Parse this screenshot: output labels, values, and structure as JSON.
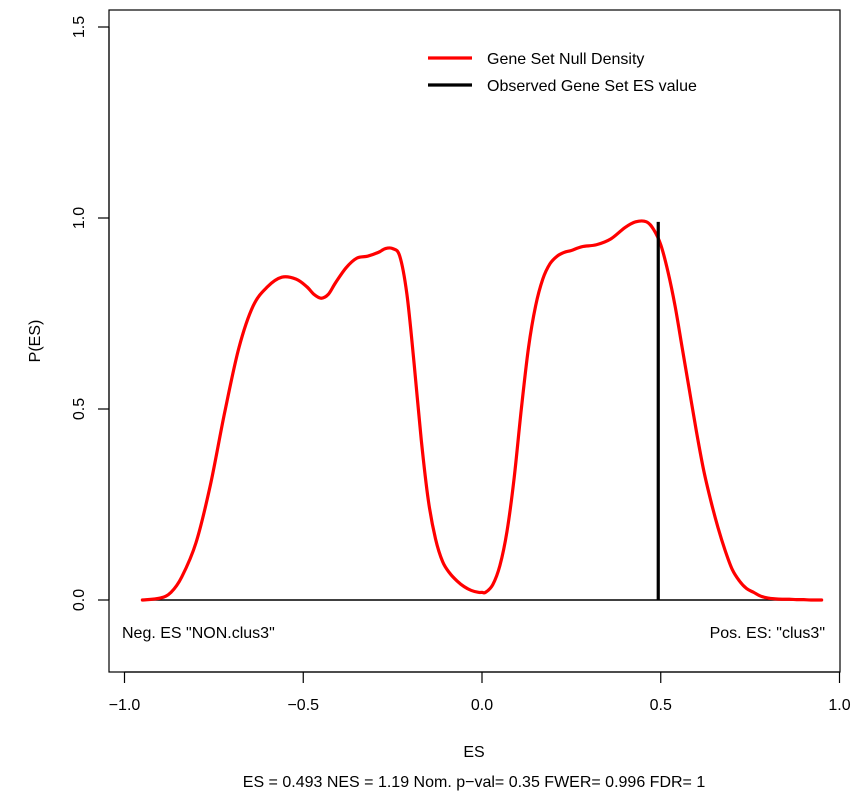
{
  "chart_data": {
    "type": "line",
    "title": "",
    "xlabel": "ES",
    "ylabel": "P(ES)",
    "stats_line": "ES = 0.493  NES = 1.19 Nom. p−val= 0.35 FWER= 0.996 FDR= 1",
    "xlim": [
      -1.0,
      1.0
    ],
    "ylim": [
      -0.18,
      1.55
    ],
    "xticks": [
      -1.0,
      -0.5,
      0.0,
      0.5,
      1.0
    ],
    "xtick_labels": [
      "−1.0",
      "−0.5",
      "0.0",
      "0.5",
      "1.0"
    ],
    "yticks": [
      0.0,
      0.5,
      1.0,
      1.5
    ],
    "ytick_labels": [
      "0.0",
      "0.5",
      "1.0",
      "1.5"
    ],
    "grid": false,
    "legend_position": "top-right",
    "neg_label": "Neg. ES \"NON.clus3\"",
    "pos_label": "Pos. ES: \"clus3\"",
    "colors": {
      "density": "#ff0000",
      "observed": "#000000",
      "axis": "#000000"
    },
    "series": [
      {
        "name": "Gene Set Null Density",
        "color": "#ff0000",
        "x": [
          -0.95,
          -0.9,
          -0.87,
          -0.84,
          -0.8,
          -0.76,
          -0.72,
          -0.68,
          -0.64,
          -0.6,
          -0.56,
          -0.52,
          -0.49,
          -0.47,
          -0.45,
          -0.43,
          -0.41,
          -0.38,
          -0.35,
          -0.32,
          -0.29,
          -0.27,
          -0.25,
          -0.23,
          -0.21,
          -0.19,
          -0.17,
          -0.15,
          -0.13,
          -0.11,
          -0.09,
          -0.07,
          -0.05,
          -0.03,
          -0.01,
          0.0,
          0.01,
          0.03,
          0.05,
          0.07,
          0.09,
          0.11,
          0.13,
          0.15,
          0.17,
          0.19,
          0.21,
          0.23,
          0.25,
          0.28,
          0.32,
          0.36,
          0.4,
          0.43,
          0.46,
          0.48,
          0.5,
          0.52,
          0.54,
          0.56,
          0.58,
          0.6,
          0.62,
          0.64,
          0.66,
          0.68,
          0.7,
          0.72,
          0.74,
          0.76,
          0.78,
          0.8,
          0.82,
          0.84,
          0.86,
          0.88,
          0.9,
          0.92,
          0.95
        ],
        "values": [
          0.0,
          0.005,
          0.02,
          0.06,
          0.15,
          0.3,
          0.49,
          0.66,
          0.77,
          0.82,
          0.845,
          0.84,
          0.82,
          0.8,
          0.79,
          0.8,
          0.83,
          0.87,
          0.895,
          0.9,
          0.91,
          0.92,
          0.92,
          0.9,
          0.8,
          0.62,
          0.42,
          0.26,
          0.16,
          0.1,
          0.07,
          0.05,
          0.035,
          0.025,
          0.02,
          0.02,
          0.02,
          0.04,
          0.09,
          0.18,
          0.32,
          0.5,
          0.66,
          0.77,
          0.84,
          0.88,
          0.9,
          0.91,
          0.915,
          0.925,
          0.93,
          0.945,
          0.975,
          0.99,
          0.99,
          0.97,
          0.93,
          0.86,
          0.77,
          0.66,
          0.55,
          0.44,
          0.34,
          0.26,
          0.19,
          0.13,
          0.08,
          0.05,
          0.03,
          0.02,
          0.01,
          0.005,
          0.003,
          0.002,
          0.002,
          0.001,
          0.001,
          0.0,
          0.0
        ]
      },
      {
        "name": "Observed Gene Set ES value",
        "color": "#000000",
        "x": [
          0.493,
          0.493
        ],
        "values": [
          0.0,
          0.99
        ]
      }
    ]
  }
}
